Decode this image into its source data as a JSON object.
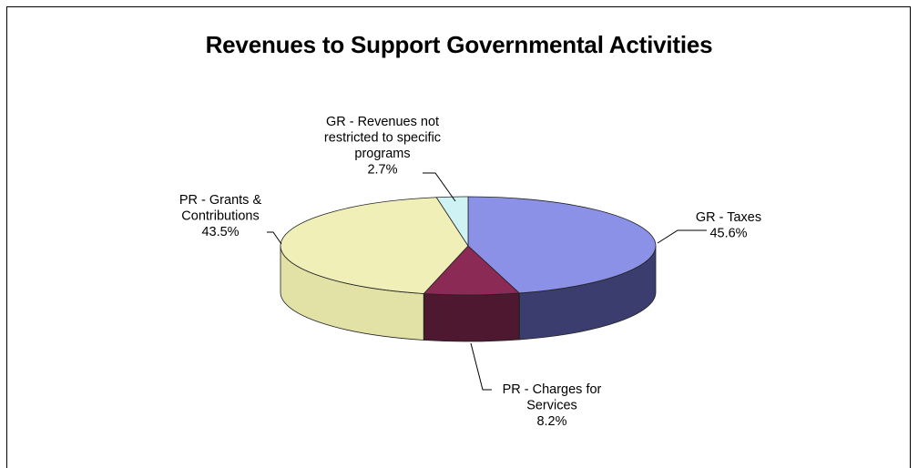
{
  "chart_data": {
    "type": "pie",
    "title": "Revenues to Support Governmental Activities",
    "slices": [
      {
        "label_lines": [
          "GR - Taxes"
        ],
        "pct_label": "45.6%",
        "value": 45.6,
        "color": "#8C91E8",
        "side_color": "#3A3D6E"
      },
      {
        "label_lines": [
          "PR - Charges for",
          "Services"
        ],
        "pct_label": "8.2%",
        "value": 8.2,
        "color": "#8B2A55",
        "side_color": "#4E1830"
      },
      {
        "label_lines": [
          "PR - Grants &",
          "Contributions"
        ],
        "pct_label": "43.5%",
        "value": 43.5,
        "color": "#F0EFB8",
        "side_color": "#E2E2A6"
      },
      {
        "label_lines": [
          "GR - Revenues not",
          "restricted to specific",
          "programs"
        ],
        "pct_label": "2.7%",
        "value": 2.7,
        "color": "#CFF3F5",
        "side_color": "#9ED6DA"
      }
    ],
    "legend": "none"
  }
}
